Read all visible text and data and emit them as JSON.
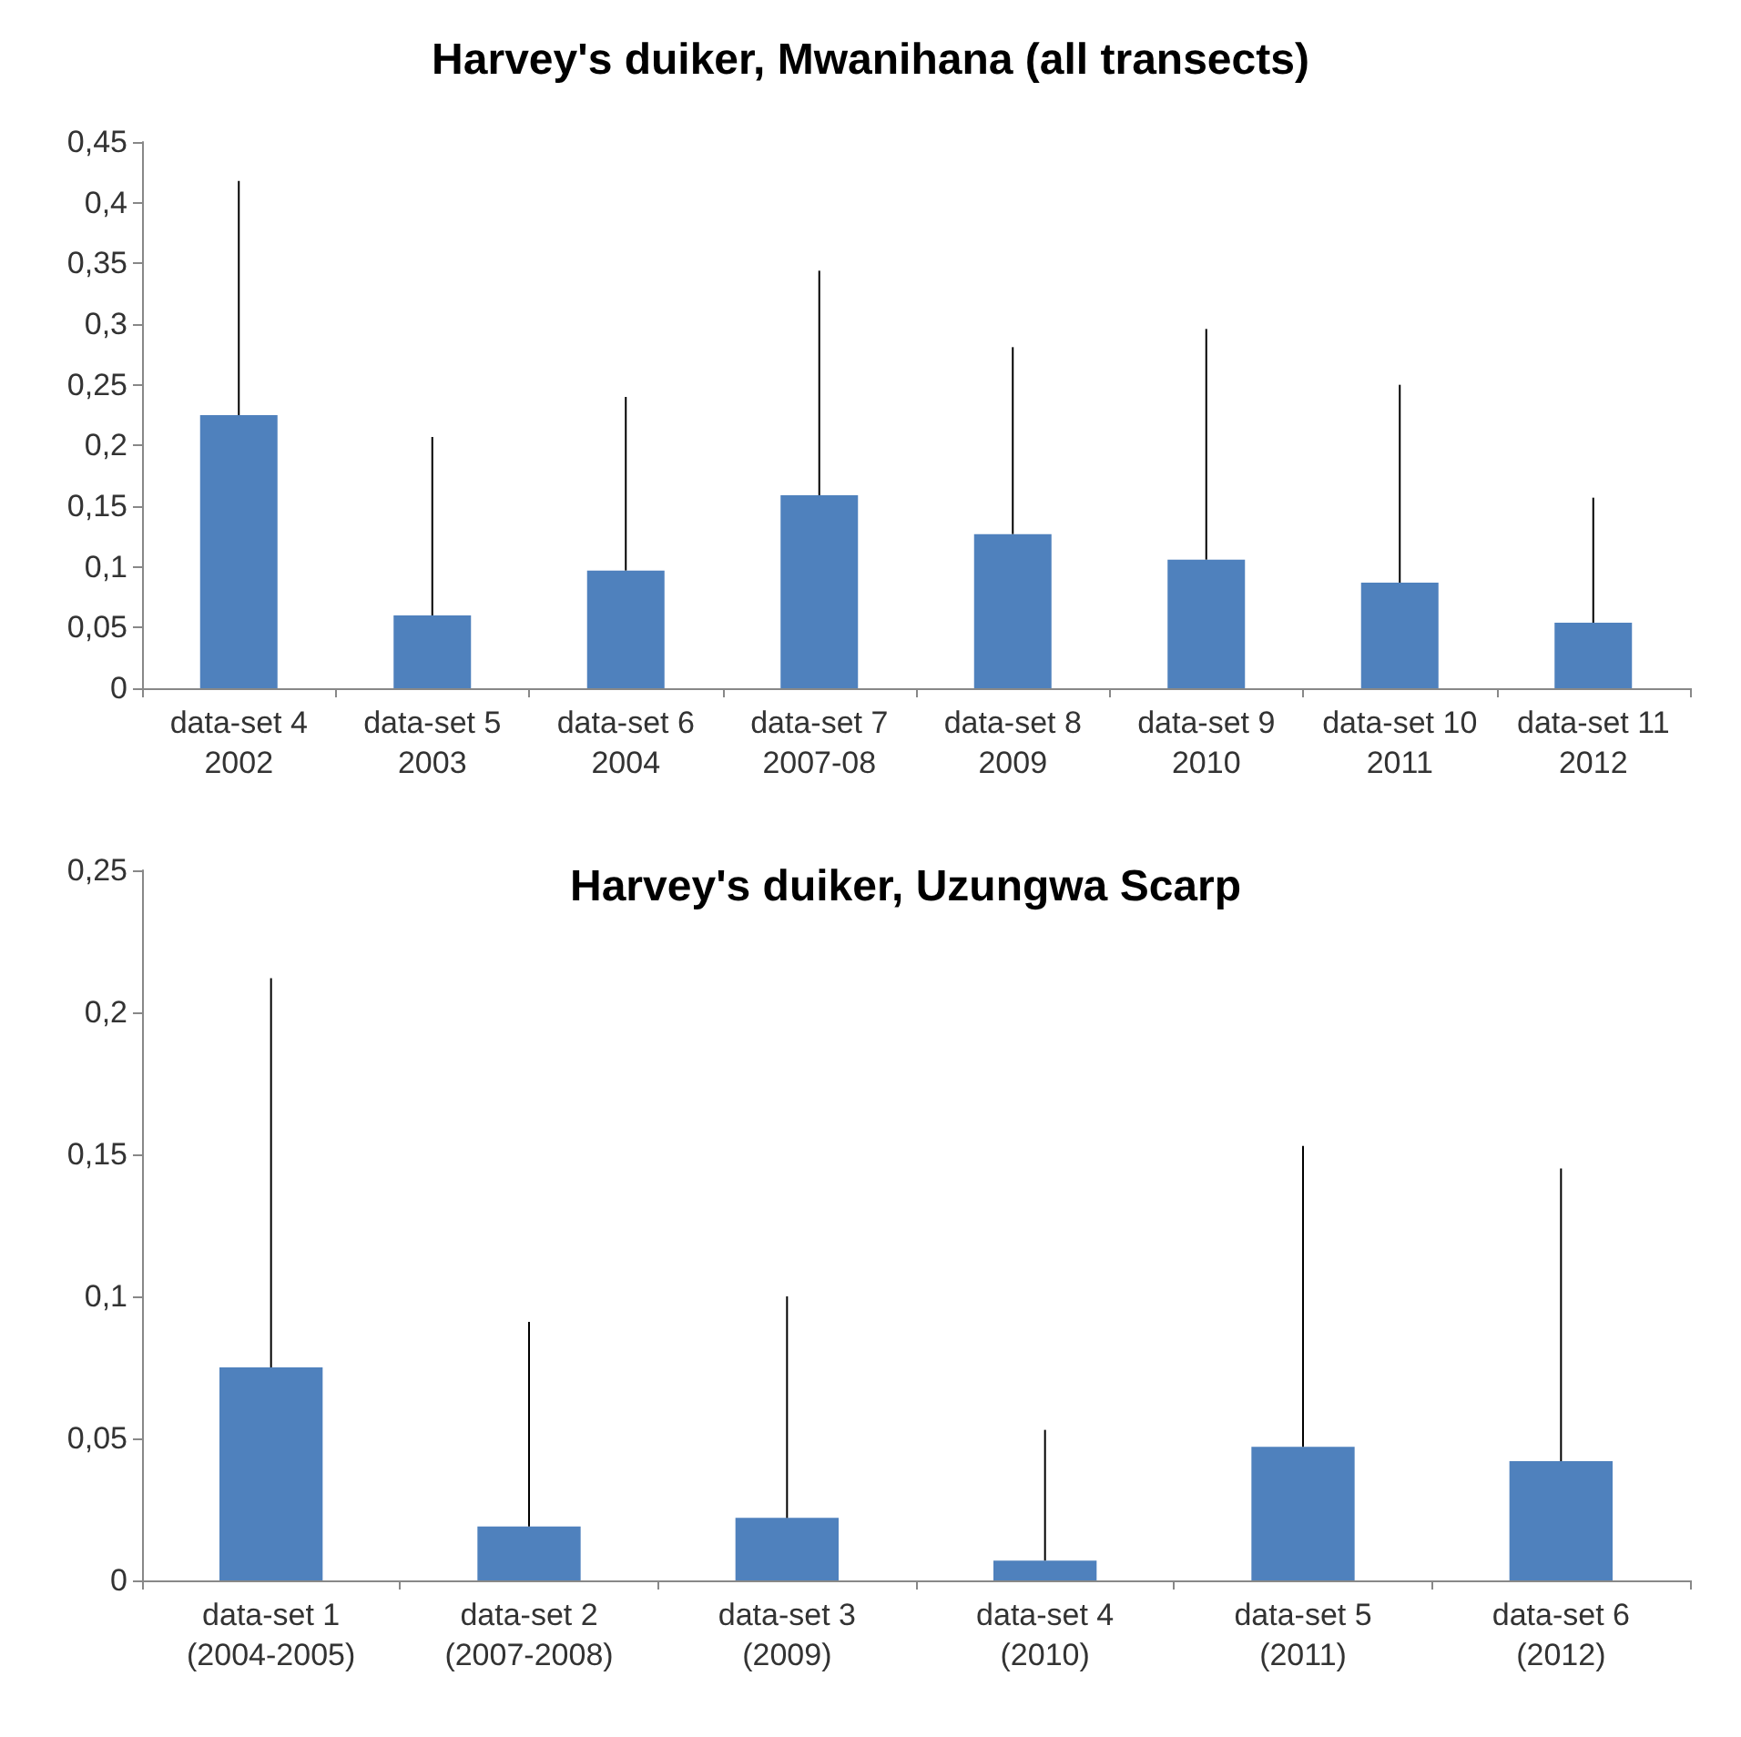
{
  "chart_data": [
    {
      "type": "bar",
      "title": "Harvey's duiker, Mwanihana (all transects)",
      "categories": [
        "data-set 4\n2002",
        "data-set 5\n2003",
        "data-set 6\n2004",
        "data-set 7\n2007-08",
        "data-set 8\n2009",
        "data-set 9\n2010",
        "data-set 10\n2011",
        "data-set 11\n2012"
      ],
      "values": [
        0.225,
        0.06,
        0.097,
        0.159,
        0.127,
        0.106,
        0.087,
        0.054
      ],
      "errors": [
        [
          0.225,
          0.418
        ],
        [
          0.06,
          0.207
        ],
        [
          0.097,
          0.24
        ],
        [
          0.159,
          0.344
        ],
        [
          0.127,
          0.281
        ],
        [
          0.106,
          0.296
        ],
        [
          0.087,
          0.25
        ],
        [
          0.054,
          0.157
        ]
      ],
      "color": "#4f81bd",
      "ylim": [
        0,
        0.45
      ],
      "yticks": [
        0,
        {
          "value": 0.05,
          "label": "0,05"
        },
        {
          "value": 0.1,
          "label": "0,1"
        },
        {
          "value": 0.15,
          "label": "0,15"
        },
        {
          "value": 0.2,
          "label": "0,2"
        },
        {
          "value": 0.25,
          "label": "0,25"
        },
        {
          "value": 0.3,
          "label": "0,3"
        },
        {
          "value": 0.35,
          "label": "0,35"
        },
        {
          "value": 0.4,
          "label": "0,4"
        },
        {
          "value": 0.45,
          "label": "0,45"
        }
      ],
      "grid": false
    },
    {
      "type": "bar",
      "title": "Harvey's duiker, Uzungwa Scarp",
      "categories": [
        "data-set 1\n(2004-2005)",
        "data-set 2\n(2007-2008)",
        "data-set 3\n(2009)",
        "data-set 4\n(2010)",
        "data-set 5\n(2011)",
        "data-set 6\n(2012)"
      ],
      "values": [
        0.075,
        0.019,
        0.022,
        0.007,
        0.047,
        0.042
      ],
      "errors": [
        [
          0.075,
          0.212
        ],
        [
          0.019,
          0.091
        ],
        [
          0.022,
          0.1
        ],
        [
          0.007,
          0.053
        ],
        [
          0.047,
          0.153
        ],
        [
          0.042,
          0.145
        ]
      ],
      "color": "#4f81bd",
      "ylim": [
        0,
        0.25
      ],
      "yticks": [
        0,
        {
          "value": 0.05,
          "label": "0,05"
        },
        {
          "value": 0.1,
          "label": "0,1"
        },
        {
          "value": 0.15,
          "label": "0,15"
        },
        {
          "value": 0.2,
          "label": "0,2"
        },
        {
          "value": 0.25,
          "label": "0,25"
        }
      ],
      "grid": false
    }
  ]
}
